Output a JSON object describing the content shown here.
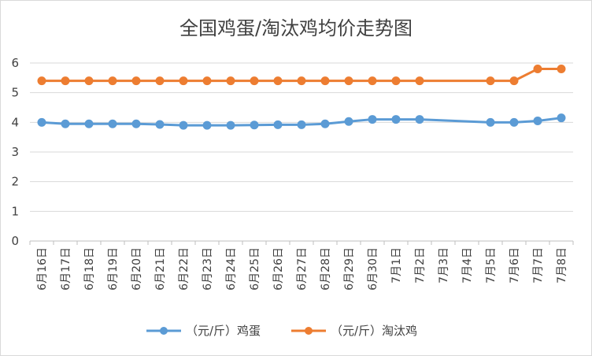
{
  "chart_data": {
    "type": "line",
    "title": "全国鸡蛋/淘汰鸡均价走势图",
    "xlabel": "",
    "ylabel": "",
    "ylim": [
      0,
      6
    ],
    "yticks": [
      0,
      1,
      2,
      3,
      4,
      5,
      6
    ],
    "grid": "horizontal",
    "legend_position": "bottom",
    "categories": [
      "6月16日",
      "6月17日",
      "6月18日",
      "6月19日",
      "6月20日",
      "6月21日",
      "6月22日",
      "6月23日",
      "6月24日",
      "6月25日",
      "6月26日",
      "6月27日",
      "6月28日",
      "6月29日",
      "6月30日",
      "7月1日",
      "7月2日",
      "7月3日",
      "7月4日",
      "7月5日",
      "7月6日",
      "7月7日",
      "7月8日"
    ],
    "series": [
      {
        "name": "（元/斤）鸡蛋",
        "color": "#5B9BD5",
        "values": [
          4.0,
          3.95,
          3.95,
          3.95,
          3.95,
          3.93,
          3.9,
          3.9,
          3.9,
          3.91,
          3.92,
          3.92,
          3.95,
          4.03,
          4.1,
          4.1,
          4.1,
          null,
          null,
          4.0,
          4.0,
          4.05,
          4.15
        ]
      },
      {
        "name": "（元/斤）淘汰鸡",
        "color": "#ED7D31",
        "values": [
          5.4,
          5.4,
          5.4,
          5.4,
          5.4,
          5.4,
          5.4,
          5.4,
          5.4,
          5.4,
          5.4,
          5.4,
          5.4,
          5.4,
          5.4,
          5.4,
          5.4,
          null,
          null,
          5.4,
          5.4,
          5.8,
          5.8
        ]
      }
    ]
  }
}
